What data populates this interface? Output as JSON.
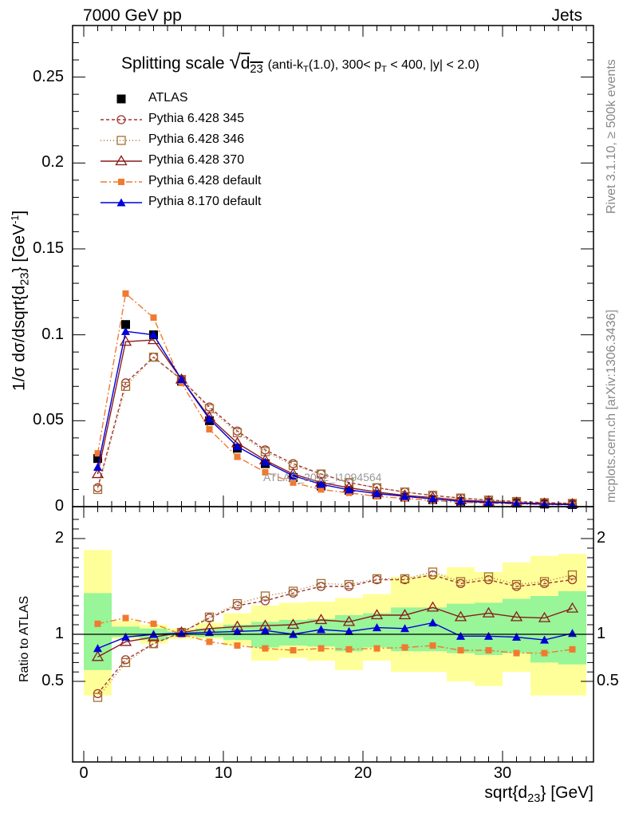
{
  "header": {
    "left": "7000 GeV pp",
    "right": "Jets"
  },
  "side": {
    "rivet": "Rivet 3.1.10, ≥ 500k events",
    "mcplots": "mcplots.cern.ch [arXiv:1306.3436]"
  },
  "watermark": "ATLAS_2012_I1094564",
  "chart_data": [
    {
      "type": "line",
      "title": "Splitting scale √d23 (anti-kT(1.0), 300< pT < 400, |y| < 2.0)",
      "xlabel": "sqrt{d23} [GeV]",
      "ylabel": "1/σ dσ/dsqrt{d23} [GeV-1]",
      "xlim": [
        -1,
        37
      ],
      "ylim": [
        0,
        0.28
      ],
      "y_ticks": [
        "0",
        "0.05",
        "0.1",
        "0.15",
        "0.2",
        "0.25"
      ],
      "x": [
        1,
        3,
        5,
        7,
        9,
        11,
        13,
        15,
        17,
        19,
        21,
        23,
        25,
        27,
        29,
        31,
        33,
        35
      ],
      "legend_position": "top-left",
      "series": [
        {
          "name": "ATLAS",
          "color": "#000000",
          "marker": "filled-square",
          "values": [
            0.028,
            0.106,
            0.1,
            0.073,
            0.05,
            0.034,
            0.025,
            0.017,
            0.012,
            0.0095,
            0.007,
            0.0055,
            0.004,
            0.003,
            0.0024,
            0.002,
            0.0015,
            0.0012
          ]
        },
        {
          "name": "Pythia 6.428 345",
          "color": "#a0342f",
          "marker": "open-circle",
          "dash": "4,3",
          "values": [
            0.011,
            0.072,
            0.087,
            0.074,
            0.058,
            0.044,
            0.033,
            0.025,
            0.019,
            0.014,
            0.011,
            0.0085,
            0.0065,
            0.005,
            0.0038,
            0.003,
            0.0023,
            0.0019
          ]
        },
        {
          "name": "Pythia 6.428 346",
          "color": "#a07030",
          "marker": "open-square",
          "dash": "1,3",
          "values": [
            0.01,
            0.07,
            0.087,
            0.074,
            0.057,
            0.043,
            0.032,
            0.024,
            0.019,
            0.014,
            0.011,
            0.0085,
            0.0066,
            0.005,
            0.0038,
            0.003,
            0.0023,
            0.0019
          ]
        },
        {
          "name": "Pythia 6.428 370",
          "color": "#8b1a1a",
          "marker": "open-triangle",
          "dash": "",
          "values": [
            0.019,
            0.096,
            0.097,
            0.074,
            0.052,
            0.037,
            0.027,
            0.019,
            0.014,
            0.011,
            0.0085,
            0.0065,
            0.0053,
            0.0038,
            0.003,
            0.0023,
            0.0018,
            0.0015
          ]
        },
        {
          "name": "Pythia 6.428 default",
          "color": "#f07a30",
          "marker": "filled-square-small",
          "dash": "8,3,2,3",
          "values": [
            0.031,
            0.124,
            0.11,
            0.072,
            0.045,
            0.029,
            0.02,
            0.014,
            0.01,
            0.008,
            0.006,
            0.0048,
            0.0035,
            0.0025,
            0.002,
            0.0016,
            0.0012,
            0.001
          ]
        },
        {
          "name": "Pythia 8.170 default",
          "color": "#0000d8",
          "marker": "filled-triangle",
          "dash": "",
          "values": [
            0.023,
            0.102,
            0.1,
            0.074,
            0.051,
            0.035,
            0.026,
            0.018,
            0.013,
            0.0098,
            0.0076,
            0.006,
            0.0045,
            0.0031,
            0.0025,
            0.0019,
            0.0014,
            0.0012
          ]
        }
      ]
    },
    {
      "type": "line",
      "ylabel": "Ratio to ATLAS",
      "xlim": [
        -1,
        37
      ],
      "ylim": [
        0.35,
        2.3
      ],
      "y_ticks": [
        "0.5",
        "1",
        "2"
      ],
      "x_ticks": [
        "0",
        "10",
        "20",
        "30"
      ],
      "x": [
        1,
        3,
        5,
        7,
        9,
        11,
        13,
        15,
        17,
        19,
        21,
        23,
        25,
        27,
        29,
        31,
        33,
        35
      ],
      "bands": {
        "bin_edges": [
          0,
          2,
          4,
          6,
          8,
          10,
          12,
          14,
          16,
          18,
          20,
          22,
          24,
          26,
          28,
          30,
          32,
          34,
          36
        ],
        "yellow_low": [
          0.35,
          0.95,
          0.9,
          0.95,
          0.95,
          0.88,
          0.72,
          0.75,
          0.72,
          0.62,
          0.72,
          0.6,
          0.6,
          0.5,
          0.45,
          0.6,
          0.35,
          0.35
        ],
        "yellow_high": [
          1.88,
          1.14,
          1.1,
          1.06,
          1.12,
          1.22,
          1.3,
          1.33,
          1.34,
          1.38,
          1.42,
          1.6,
          1.62,
          1.7,
          1.65,
          1.75,
          1.82,
          1.84
        ],
        "green_low": [
          0.62,
          0.97,
          0.94,
          0.98,
          0.97,
          0.94,
          0.86,
          0.88,
          0.87,
          0.82,
          0.86,
          0.82,
          0.82,
          0.8,
          0.78,
          0.8,
          0.7,
          0.68
        ],
        "green_high": [
          1.43,
          1.08,
          1.06,
          1.03,
          1.06,
          1.1,
          1.13,
          1.15,
          1.16,
          1.2,
          1.22,
          1.28,
          1.28,
          1.32,
          1.33,
          1.37,
          1.4,
          1.45
        ]
      },
      "series": [
        {
          "name": "Pythia 6.428 345",
          "values": [
            0.37,
            0.73,
            0.9,
            1.02,
            1.17,
            1.3,
            1.35,
            1.43,
            1.5,
            1.5,
            1.57,
            1.57,
            1.62,
            1.53,
            1.57,
            1.5,
            1.53,
            1.57
          ]
        },
        {
          "name": "Pythia 6.428 346",
          "values": [
            0.33,
            0.7,
            0.9,
            1.02,
            1.18,
            1.32,
            1.4,
            1.45,
            1.53,
            1.52,
            1.58,
            1.58,
            1.65,
            1.55,
            1.6,
            1.52,
            1.55,
            1.62
          ]
        },
        {
          "name": "Pythia 6.428 370",
          "values": [
            0.76,
            0.92,
            0.97,
            1.02,
            1.06,
            1.08,
            1.09,
            1.1,
            1.15,
            1.13,
            1.2,
            1.2,
            1.28,
            1.18,
            1.22,
            1.18,
            1.17,
            1.27
          ]
        },
        {
          "name": "Pythia 6.428 default",
          "values": [
            1.11,
            1.17,
            1.11,
            1.0,
            0.92,
            0.88,
            0.85,
            0.83,
            0.85,
            0.84,
            0.85,
            0.86,
            0.88,
            0.83,
            0.83,
            0.8,
            0.8,
            0.84
          ]
        },
        {
          "name": "Pythia 8.170 default",
          "values": [
            0.85,
            0.97,
            1.0,
            1.01,
            1.02,
            1.03,
            1.04,
            1.0,
            1.05,
            1.03,
            1.07,
            1.06,
            1.12,
            0.98,
            0.98,
            0.97,
            0.94,
            1.01
          ]
        }
      ]
    }
  ]
}
